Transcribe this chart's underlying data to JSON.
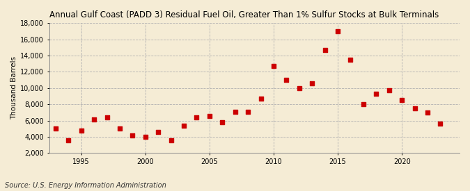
{
  "title": "Annual Gulf Coast (PADD 3) Residual Fuel Oil, Greater Than 1% Sulfur Stocks at Bulk Terminals",
  "ylabel": "Thousand Barrels",
  "source": "Source: U.S. Energy Information Administration",
  "background_color": "#f5ecd5",
  "plot_bg_color": "#f5ecd5",
  "marker_color": "#cc0000",
  "marker_size": 4,
  "ylim": [
    2000,
    18000
  ],
  "yticks": [
    2000,
    4000,
    6000,
    8000,
    10000,
    12000,
    14000,
    16000,
    18000
  ],
  "xticks": [
    1995,
    2000,
    2005,
    2010,
    2015,
    2020
  ],
  "xlim": [
    1992.5,
    2024.5
  ],
  "years": [
    1993,
    1994,
    1995,
    1996,
    1997,
    1998,
    1999,
    2000,
    2001,
    2002,
    2003,
    2004,
    2005,
    2006,
    2007,
    2008,
    2009,
    2010,
    2011,
    2012,
    2013,
    2014,
    2015,
    2016,
    2017,
    2018,
    2019,
    2020,
    2021,
    2022,
    2023
  ],
  "values": [
    5000,
    3600,
    4800,
    6100,
    6400,
    5000,
    4200,
    4000,
    4600,
    3600,
    5400,
    6400,
    6600,
    5800,
    7100,
    7100,
    8700,
    12700,
    11000,
    10000,
    10600,
    14700,
    17000,
    13500,
    8000,
    9300,
    9700,
    8500,
    7500,
    7000,
    5600
  ]
}
